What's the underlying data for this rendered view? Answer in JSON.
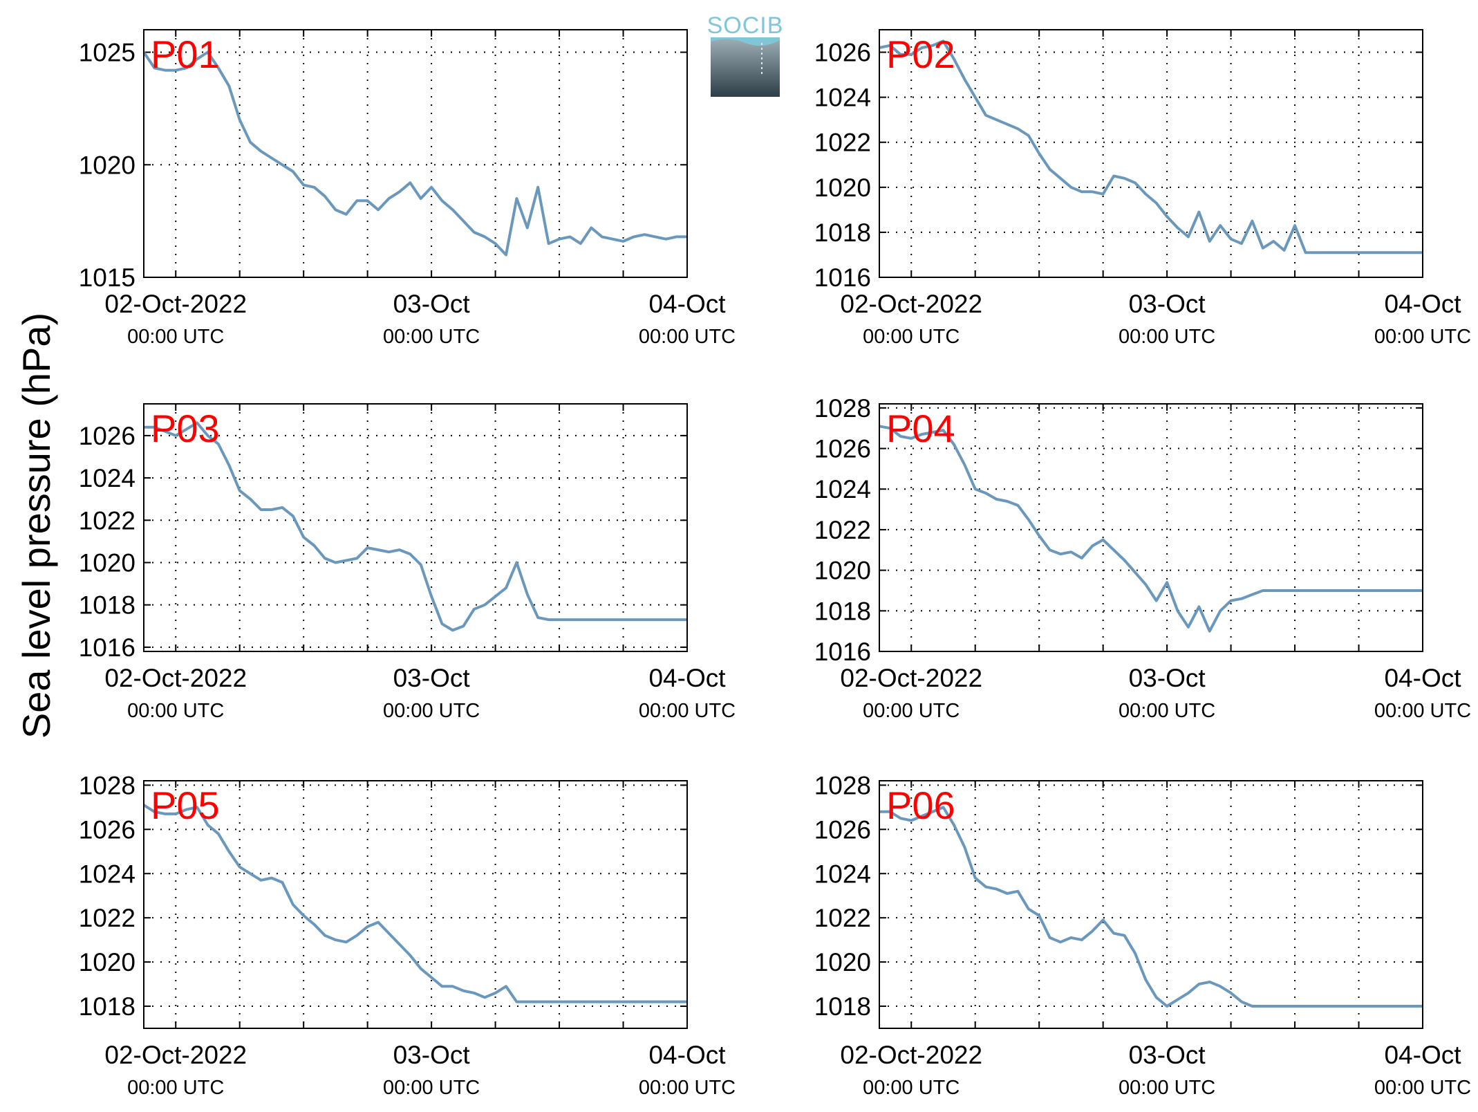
{
  "figure": {
    "ylabel": "Sea level pressure (hPa)",
    "logo_text": "SOCIB",
    "colors": {
      "line": "#6a98bd",
      "panel_label": "#ff0000",
      "axis": "#000000",
      "grid": "#000000"
    }
  },
  "chart_data": [
    {
      "type": "line",
      "name": "P01",
      "x_ticks": [
        "02-Oct-2022",
        "03-Oct",
        "04-Oct"
      ],
      "x_subticks": [
        "00:00 UTC",
        "00:00 UTC",
        "00:00 UTC"
      ],
      "x_unit": "hours since 02-Oct-2022 00:00 UTC",
      "xlim": [
        -3,
        48
      ],
      "ylim": [
        1015,
        1026
      ],
      "yticks": [
        1015,
        1020,
        1025
      ],
      "grid": true,
      "x": [
        -3,
        -2,
        -1,
        0,
        1,
        2,
        3,
        4,
        5,
        6,
        7,
        8,
        9,
        10,
        11,
        12,
        13,
        14,
        15,
        16,
        17,
        18,
        19,
        20,
        21,
        22,
        23,
        24,
        25,
        26,
        27,
        28,
        29,
        30,
        31,
        32,
        33,
        34,
        35,
        36,
        37,
        38,
        39,
        40,
        41,
        42,
        43,
        44,
        45,
        46,
        47,
        48
      ],
      "y": [
        1025.0,
        1024.3,
        1024.2,
        1024.2,
        1024.3,
        1024.7,
        1025.0,
        1024.3,
        1023.5,
        1022.0,
        1021.0,
        1020.6,
        1020.3,
        1020.0,
        1019.7,
        1019.1,
        1019.0,
        1018.6,
        1018.0,
        1017.8,
        1018.4,
        1018.4,
        1018.0,
        1018.5,
        1018.8,
        1019.2,
        1018.5,
        1019.0,
        1018.4,
        1018.0,
        1017.5,
        1017.0,
        1016.8,
        1016.5,
        1016.0,
        1018.5,
        1017.2,
        1019.0,
        1016.5,
        1016.7,
        1016.8,
        1016.5,
        1017.2,
        1016.8,
        1016.7,
        1016.6,
        1016.8,
        1016.9,
        1016.8,
        1016.7,
        1016.8,
        1016.8
      ]
    },
    {
      "type": "line",
      "name": "P02",
      "x_ticks": [
        "02-Oct-2022",
        "03-Oct",
        "04-Oct"
      ],
      "x_subticks": [
        "00:00 UTC",
        "00:00 UTC",
        "00:00 UTC"
      ],
      "x_unit": "hours since 02-Oct-2022 00:00 UTC",
      "xlim": [
        -3,
        48
      ],
      "ylim": [
        1016,
        1027
      ],
      "yticks": [
        1016,
        1018,
        1020,
        1022,
        1024,
        1026
      ],
      "grid": true,
      "x": [
        -3,
        -2,
        -1,
        0,
        1,
        2,
        3,
        4,
        5,
        6,
        7,
        8,
        9,
        10,
        11,
        12,
        13,
        14,
        15,
        16,
        17,
        18,
        19,
        20,
        21,
        22,
        23,
        24,
        25,
        26,
        27,
        28,
        29,
        30,
        31,
        32,
        33,
        34,
        35,
        36,
        37,
        38,
        39,
        40,
        41,
        42,
        43,
        44,
        45,
        46,
        47,
        48
      ],
      "y": [
        1026.2,
        1026.3,
        1025.9,
        1025.9,
        1026.2,
        1026.3,
        1026.5,
        1025.7,
        1024.8,
        1024.0,
        1023.2,
        1023.0,
        1022.8,
        1022.6,
        1022.3,
        1021.5,
        1020.8,
        1020.4,
        1020.0,
        1019.8,
        1019.8,
        1019.7,
        1020.5,
        1020.4,
        1020.2,
        1019.7,
        1019.3,
        1018.7,
        1018.2,
        1017.8,
        1018.9,
        1017.6,
        1018.3,
        1017.7,
        1017.5,
        1018.5,
        1017.3,
        1017.6,
        1017.2,
        1018.3,
        1017.1,
        1017.1,
        1017.1,
        1017.1,
        1017.1,
        1017.1,
        1017.1,
        1017.1,
        1017.1,
        1017.1,
        1017.1,
        1017.1
      ]
    },
    {
      "type": "line",
      "name": "P03",
      "x_ticks": [
        "02-Oct-2022",
        "03-Oct",
        "04-Oct"
      ],
      "x_subticks": [
        "00:00 UTC",
        "00:00 UTC",
        "00:00 UTC"
      ],
      "x_unit": "hours since 02-Oct-2022 00:00 UTC",
      "xlim": [
        -3,
        48
      ],
      "ylim": [
        1015.8,
        1027.5
      ],
      "yticks": [
        1016,
        1018,
        1020,
        1022,
        1024,
        1026
      ],
      "grid": true,
      "x": [
        -3,
        -2,
        -1,
        0,
        1,
        2,
        3,
        4,
        5,
        6,
        7,
        8,
        9,
        10,
        11,
        12,
        13,
        14,
        15,
        16,
        17,
        18,
        19,
        20,
        21,
        22,
        23,
        24,
        25,
        26,
        27,
        28,
        29,
        30,
        31,
        32,
        33,
        34,
        35,
        36,
        37,
        38,
        39,
        40,
        41,
        42,
        43,
        44,
        45,
        46,
        47,
        48
      ],
      "y": [
        1026.4,
        1026.4,
        1026.2,
        1026.0,
        1026.3,
        1026.6,
        1026.0,
        1025.6,
        1024.6,
        1023.4,
        1023.0,
        1022.5,
        1022.5,
        1022.6,
        1022.2,
        1021.2,
        1020.8,
        1020.2,
        1020.0,
        1020.1,
        1020.2,
        1020.7,
        1020.6,
        1020.5,
        1020.6,
        1020.4,
        1019.9,
        1018.4,
        1017.1,
        1016.8,
        1017.0,
        1017.8,
        1018.0,
        1018.4,
        1018.8,
        1020.0,
        1018.5,
        1017.4,
        1017.3,
        1017.3,
        1017.3,
        1017.3,
        1017.3,
        1017.3,
        1017.3,
        1017.3,
        1017.3,
        1017.3,
        1017.3,
        1017.3,
        1017.3,
        1017.3
      ]
    },
    {
      "type": "line",
      "name": "P04",
      "x_ticks": [
        "02-Oct-2022",
        "03-Oct",
        "04-Oct"
      ],
      "x_subticks": [
        "00:00 UTC",
        "00:00 UTC",
        "00:00 UTC"
      ],
      "x_unit": "hours since 02-Oct-2022 00:00 UTC",
      "xlim": [
        -3,
        48
      ],
      "ylim": [
        1016,
        1028.2
      ],
      "yticks": [
        1016,
        1018,
        1020,
        1022,
        1024,
        1026,
        1028
      ],
      "grid": true,
      "x": [
        -3,
        -2,
        -1,
        0,
        1,
        2,
        3,
        4,
        5,
        6,
        7,
        8,
        9,
        10,
        11,
        12,
        13,
        14,
        15,
        16,
        17,
        18,
        19,
        20,
        21,
        22,
        23,
        24,
        25,
        26,
        27,
        28,
        29,
        30,
        31,
        32,
        33,
        34,
        35,
        36,
        37,
        38,
        39,
        40,
        41,
        42,
        43,
        44,
        45,
        46,
        47,
        48
      ],
      "y": [
        1027.1,
        1027.0,
        1026.6,
        1026.5,
        1026.7,
        1026.8,
        1026.9,
        1026.2,
        1025.2,
        1024.0,
        1023.8,
        1023.5,
        1023.4,
        1023.2,
        1022.5,
        1021.7,
        1021.0,
        1020.8,
        1020.9,
        1020.6,
        1021.2,
        1021.5,
        1021.0,
        1020.5,
        1019.9,
        1019.3,
        1018.5,
        1019.4,
        1018.0,
        1017.2,
        1018.2,
        1017.0,
        1018.0,
        1018.5,
        1018.6,
        1018.8,
        1019.0,
        1019.0,
        1019.0,
        1019.0,
        1019.0,
        1019.0,
        1019.0,
        1019.0,
        1019.0,
        1019.0,
        1019.0,
        1019.0,
        1019.0,
        1019.0,
        1019.0,
        1019.0
      ]
    },
    {
      "type": "line",
      "name": "P05",
      "x_ticks": [
        "02-Oct-2022",
        "03-Oct",
        "04-Oct"
      ],
      "x_subticks": [
        "00:00 UTC",
        "00:00 UTC",
        "00:00 UTC"
      ],
      "x_unit": "hours since 02-Oct-2022 00:00 UTC",
      "xlim": [
        -3,
        48
      ],
      "ylim": [
        1017,
        1028.2
      ],
      "yticks": [
        1018,
        1020,
        1022,
        1024,
        1026,
        1028
      ],
      "grid": true,
      "x": [
        -3,
        -2,
        -1,
        0,
        1,
        2,
        3,
        4,
        5,
        6,
        7,
        8,
        9,
        10,
        11,
        12,
        13,
        14,
        15,
        16,
        17,
        18,
        19,
        20,
        21,
        22,
        23,
        24,
        25,
        26,
        27,
        28,
        29,
        30,
        31,
        32,
        33,
        34,
        35,
        36,
        37,
        38,
        39,
        40,
        41,
        42,
        43,
        44,
        45,
        46,
        47,
        48
      ],
      "y": [
        1027.1,
        1026.8,
        1026.7,
        1026.7,
        1026.9,
        1027.0,
        1026.2,
        1025.8,
        1025.0,
        1024.3,
        1024.0,
        1023.7,
        1023.8,
        1023.6,
        1022.6,
        1022.1,
        1021.7,
        1021.2,
        1021.0,
        1020.9,
        1021.2,
        1021.6,
        1021.8,
        1021.3,
        1020.8,
        1020.3,
        1019.7,
        1019.3,
        1018.9,
        1018.9,
        1018.7,
        1018.6,
        1018.4,
        1018.6,
        1018.9,
        1018.2,
        1018.2,
        1018.2,
        1018.2,
        1018.2,
        1018.2,
        1018.2,
        1018.2,
        1018.2,
        1018.2,
        1018.2,
        1018.2,
        1018.2,
        1018.2,
        1018.2,
        1018.2,
        1018.2
      ]
    },
    {
      "type": "line",
      "name": "P06",
      "x_ticks": [
        "02-Oct-2022",
        "03-Oct",
        "04-Oct"
      ],
      "x_subticks": [
        "00:00 UTC",
        "00:00 UTC",
        "00:00 UTC"
      ],
      "x_unit": "hours since 02-Oct-2022 00:00 UTC",
      "xlim": [
        -3,
        48
      ],
      "ylim": [
        1017,
        1028.2
      ],
      "yticks": [
        1018,
        1020,
        1022,
        1024,
        1026,
        1028
      ],
      "grid": true,
      "x": [
        -3,
        -2,
        -1,
        0,
        1,
        2,
        3,
        4,
        5,
        6,
        7,
        8,
        9,
        10,
        11,
        12,
        13,
        14,
        15,
        16,
        17,
        18,
        19,
        20,
        21,
        22,
        23,
        24,
        25,
        26,
        27,
        28,
        29,
        30,
        31,
        32,
        33,
        34,
        35,
        36,
        37,
        38,
        39,
        40,
        41,
        42,
        43,
        44,
        45,
        46,
        47,
        48
      ],
      "y": [
        1026.8,
        1026.8,
        1026.5,
        1026.4,
        1026.6,
        1026.8,
        1027.0,
        1026.2,
        1025.2,
        1023.8,
        1023.4,
        1023.3,
        1023.1,
        1023.2,
        1022.4,
        1022.1,
        1021.1,
        1020.9,
        1021.1,
        1021.0,
        1021.4,
        1021.9,
        1021.3,
        1021.2,
        1020.4,
        1019.2,
        1018.4,
        1018.0,
        1018.3,
        1018.6,
        1019.0,
        1019.1,
        1018.9,
        1018.6,
        1018.2,
        1018.0,
        1018.0,
        1018.0,
        1018.0,
        1018.0,
        1018.0,
        1018.0,
        1018.0,
        1018.0,
        1018.0,
        1018.0,
        1018.0,
        1018.0,
        1018.0,
        1018.0,
        1018.0,
        1018.0
      ]
    }
  ]
}
